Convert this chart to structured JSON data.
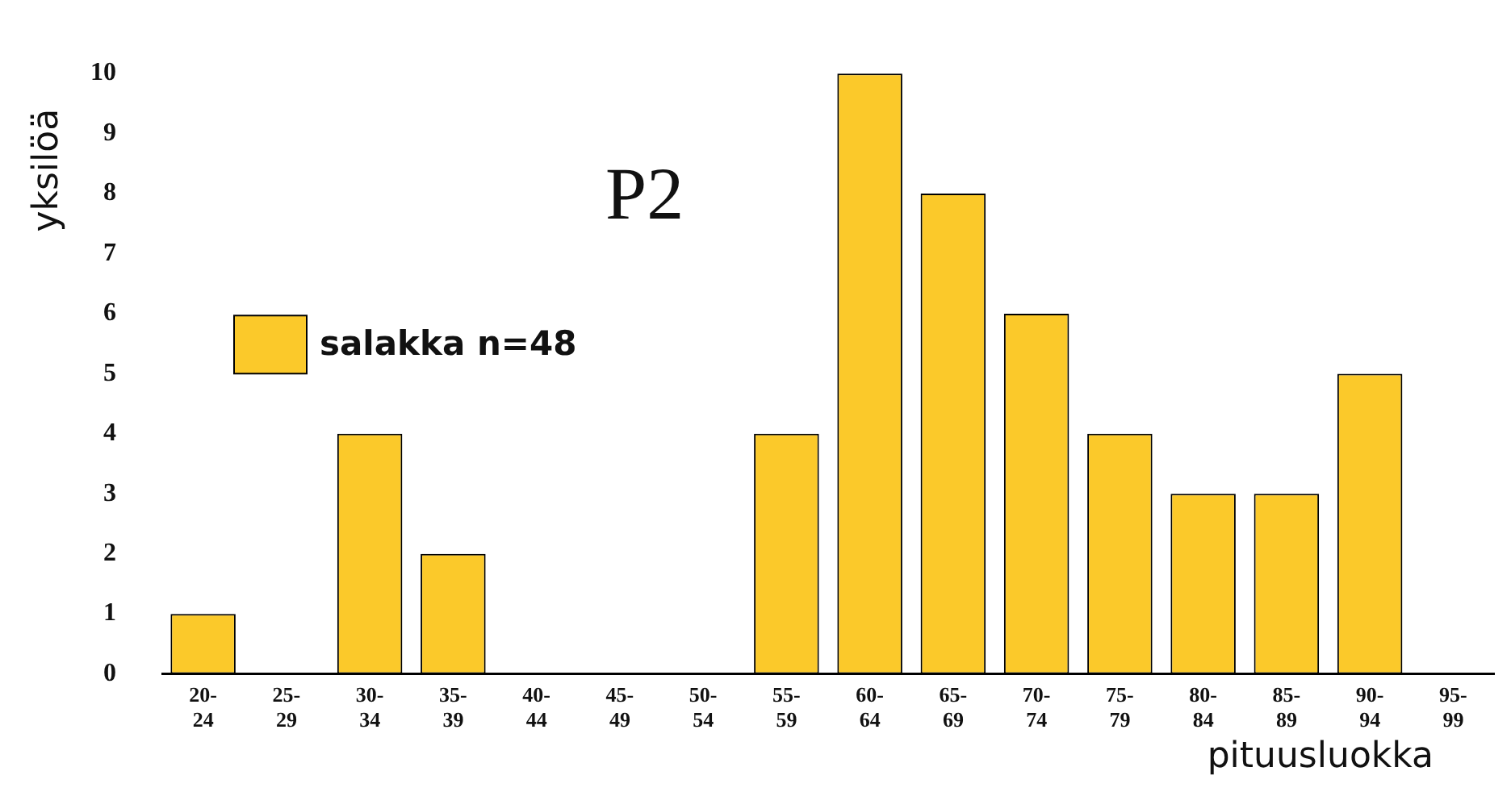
{
  "chart_data": {
    "type": "bar",
    "title": "P2",
    "xlabel": "pituusluokka",
    "ylabel": "yksilöä",
    "categories": [
      "20-24",
      "25-29",
      "30-34",
      "35-39",
      "40-44",
      "45-49",
      "50-54",
      "55-59",
      "60-64",
      "65-69",
      "70-74",
      "75-79",
      "80-84",
      "85-89",
      "90-94",
      "95-99"
    ],
    "series": [
      {
        "name": "salakka n=48",
        "color": "#fbc92a",
        "values": [
          1,
          0,
          4,
          2,
          0,
          0,
          0,
          4,
          10,
          8,
          6,
          4,
          3,
          3,
          5,
          0
        ]
      }
    ],
    "ylim": [
      0,
      10
    ],
    "yticks": [
      0,
      1,
      2,
      3,
      4,
      5,
      6,
      7,
      8,
      9,
      10
    ],
    "grid": false,
    "legend": "top left"
  }
}
